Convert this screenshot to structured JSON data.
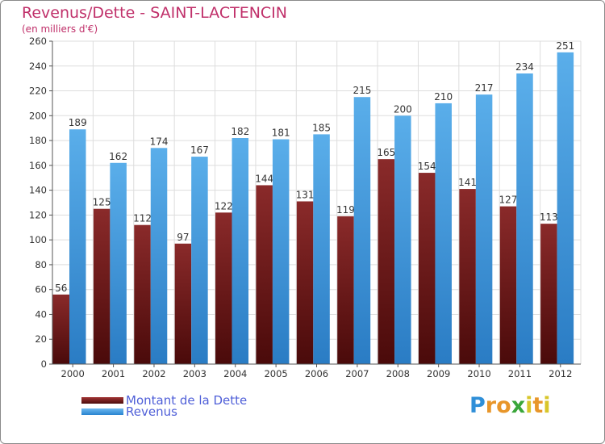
{
  "chart_data": {
    "type": "bar",
    "title": "Revenus/Dette - SAINT-LACTENCIN",
    "subtitle": "(en milliers d'€)",
    "categories": [
      "2000",
      "2001",
      "2002",
      "2003",
      "2004",
      "2005",
      "2006",
      "2007",
      "2008",
      "2009",
      "2010",
      "2011",
      "2012"
    ],
    "series": [
      {
        "name": "Montant de la Dette",
        "color": "#7a1c1c",
        "values": [
          56,
          125,
          112,
          97,
          122,
          144,
          131,
          119,
          165,
          154,
          141,
          127,
          113
        ]
      },
      {
        "name": "Revenus",
        "color": "#3f9be6",
        "values": [
          189,
          162,
          174,
          167,
          182,
          181,
          185,
          215,
          200,
          210,
          217,
          234,
          251
        ]
      }
    ],
    "ylim": [
      0,
      260
    ],
    "yticks": [
      0,
      20,
      40,
      60,
      80,
      100,
      120,
      140,
      160,
      180,
      200,
      220,
      240,
      260
    ],
    "grid": true,
    "legend_position": "bottom-left"
  },
  "logo": {
    "letters": [
      "P",
      "r",
      "o",
      "x",
      "i",
      "t",
      "i"
    ],
    "colors": [
      "#2f8fd8",
      "#e8962a",
      "#e8962a",
      "#3aa63a",
      "#d8c62a",
      "#e8962a",
      "#d8c62a"
    ]
  }
}
